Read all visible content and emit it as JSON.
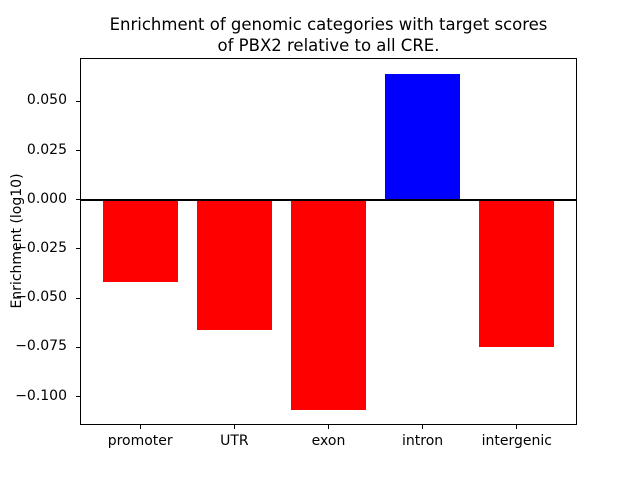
{
  "title": {
    "line1": "Enrichment of genomic categories with target scores",
    "line2": "of PBX2 relative to all CRE."
  },
  "chart_data": {
    "type": "bar",
    "title": "Enrichment of genomic categories with target scores\nof PBX2 relative to all CRE.",
    "xlabel": "",
    "ylabel": "Enrichment (log10)",
    "categories": [
      "promoter",
      "UTR",
      "exon",
      "intron",
      "intergenic"
    ],
    "values": [
      -0.042,
      -0.066,
      -0.107,
      0.064,
      -0.075
    ],
    "bar_colors": [
      "#ff0000",
      "#ff0000",
      "#ff0000",
      "#0000ff",
      "#ff0000"
    ],
    "positive_color": "#0000ff",
    "negative_color": "#ff0000",
    "bar_width": 0.8,
    "xlim": [
      -0.64,
      4.64
    ],
    "ylim": [
      -0.1145,
      0.072
    ],
    "yticks": [
      0.05,
      0.025,
      0.0,
      -0.025,
      -0.05,
      -0.075,
      -0.1
    ],
    "ytick_labels": [
      "0.050",
      "0.025",
      "0.000",
      "−0.025",
      "−0.050",
      "−0.075",
      "−0.100"
    ],
    "zero_line": true,
    "grid": false,
    "legend": null,
    "axis_color": "#000000",
    "background_color": "#ffffff"
  }
}
